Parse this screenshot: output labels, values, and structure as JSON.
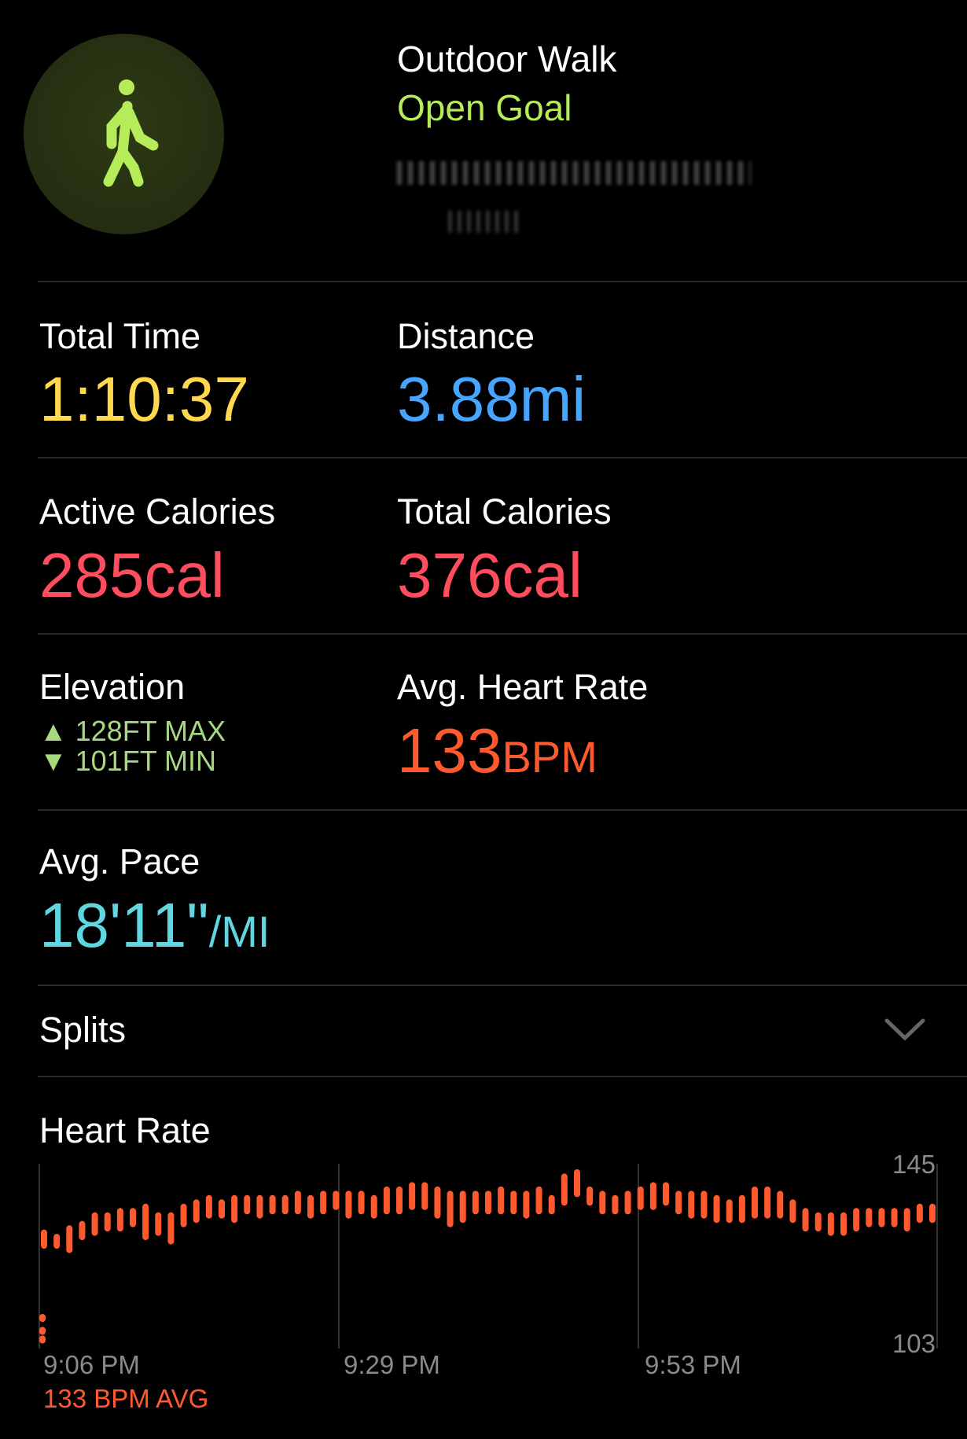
{
  "header": {
    "title": "Outdoor Walk",
    "subtitle": "Open Goal",
    "icon": "figure-walk-icon",
    "accent": "#b6ec5a"
  },
  "metrics": {
    "total_time": {
      "label": "Total Time",
      "value": "1:10:37",
      "color": "#ffd84f"
    },
    "distance": {
      "label": "Distance",
      "value": "3.88",
      "unit": "mi",
      "color": "#46a6ff"
    },
    "active_calories": {
      "label": "Active Calories",
      "value": "285",
      "unit": "cal",
      "color": "#ff4d5e"
    },
    "total_calories": {
      "label": "Total Calories",
      "value": "376",
      "unit": "cal",
      "color": "#ff4d5e"
    },
    "elevation": {
      "label": "Elevation",
      "max": "128FT MAX",
      "min": "101FT MIN",
      "color": "#a8d880"
    },
    "avg_heart_rate": {
      "label": "Avg. Heart Rate",
      "value": "133",
      "unit": "BPM",
      "color": "#ff5a2e"
    },
    "avg_pace": {
      "label": "Avg. Pace",
      "value": "18'11\"",
      "unit": "/MI",
      "color": "#5fd6e0"
    }
  },
  "splits": {
    "label": "Splits",
    "icon": "chevron-down-icon"
  },
  "heart_rate": {
    "label": "Heart Rate",
    "avg_label": "133 BPM AVG"
  },
  "chart_data": {
    "type": "bar",
    "title": "Heart Rate",
    "x_ticks": [
      "9:06 PM",
      "9:29 PM",
      "9:53 PM"
    ],
    "y_ticks": [
      "145",
      "103"
    ],
    "ylim": [
      103,
      145
    ],
    "x_unit": "minutes from 9:06 PM",
    "color": "#ff5a2e",
    "grid": true,
    "ranges": [
      [
        126,
        129
      ],
      [
        126,
        128
      ],
      [
        125,
        130
      ],
      [
        128,
        131
      ],
      [
        129,
        133
      ],
      [
        130,
        133
      ],
      [
        130,
        134
      ],
      [
        131,
        134
      ],
      [
        128,
        135
      ],
      [
        129,
        133
      ],
      [
        127,
        133
      ],
      [
        131,
        135
      ],
      [
        132,
        136
      ],
      [
        133,
        137
      ],
      [
        133,
        136
      ],
      [
        132,
        137
      ],
      [
        134,
        137
      ],
      [
        133,
        137
      ],
      [
        134,
        137
      ],
      [
        134,
        137
      ],
      [
        134,
        138
      ],
      [
        133,
        137
      ],
      [
        134,
        138
      ],
      [
        135,
        138
      ],
      [
        133,
        138
      ],
      [
        134,
        138
      ],
      [
        133,
        137
      ],
      [
        134,
        139
      ],
      [
        134,
        139
      ],
      [
        135,
        140
      ],
      [
        135,
        140
      ],
      [
        133,
        139
      ],
      [
        131,
        138
      ],
      [
        132,
        138
      ],
      [
        134,
        138
      ],
      [
        134,
        138
      ],
      [
        134,
        139
      ],
      [
        134,
        138
      ],
      [
        133,
        138
      ],
      [
        134,
        139
      ],
      [
        134,
        137
      ],
      [
        136,
        142
      ],
      [
        138,
        143
      ],
      [
        136,
        139
      ],
      [
        134,
        138
      ],
      [
        134,
        137
      ],
      [
        134,
        138
      ],
      [
        135,
        139
      ],
      [
        135,
        140
      ],
      [
        136,
        140
      ],
      [
        134,
        138
      ],
      [
        133,
        138
      ],
      [
        133,
        138
      ],
      [
        132,
        137
      ],
      [
        132,
        136
      ],
      [
        132,
        137
      ],
      [
        133,
        139
      ],
      [
        133,
        139
      ],
      [
        133,
        138
      ],
      [
        132,
        136
      ],
      [
        130,
        134
      ],
      [
        130,
        133
      ],
      [
        129,
        133
      ],
      [
        129,
        133
      ],
      [
        130,
        134
      ],
      [
        131,
        134
      ],
      [
        131,
        134
      ],
      [
        131,
        134
      ],
      [
        130,
        134
      ],
      [
        132,
        135
      ],
      [
        132,
        135
      ]
    ],
    "low_points": [
      104,
      106,
      109
    ]
  }
}
